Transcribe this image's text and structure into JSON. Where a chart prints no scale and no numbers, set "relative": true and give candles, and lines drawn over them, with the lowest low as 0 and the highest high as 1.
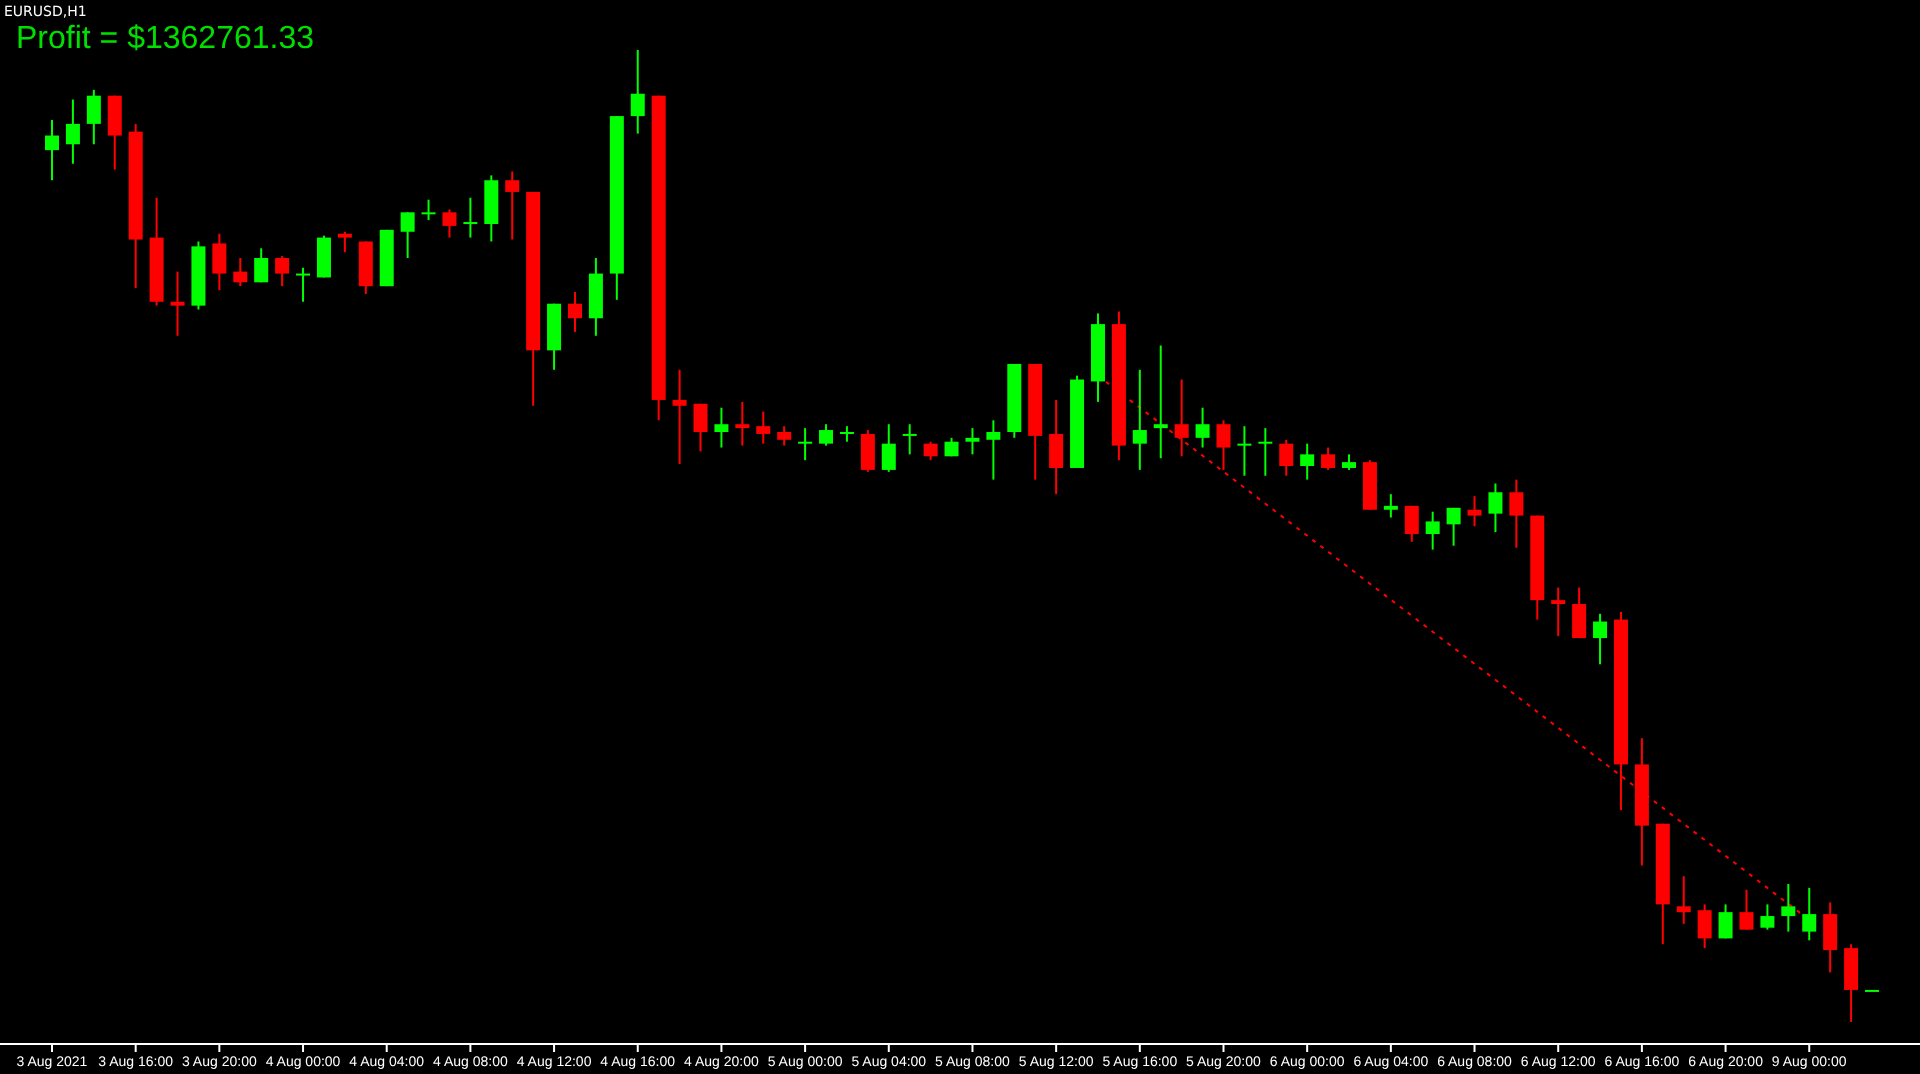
{
  "chart_data": {
    "type": "candlestick",
    "title": "EURUSD,H1",
    "annotations": [
      "Profit = $1362761.33"
    ],
    "relative": true,
    "tick_labels": "x",
    "categories": [
      "3 Aug 2021",
      null,
      null,
      null,
      "3 Aug 16:00",
      null,
      null,
      null,
      "3 Aug 20:00",
      null,
      null,
      null,
      "4 Aug 00:00",
      null,
      null,
      null,
      "4 Aug 04:00",
      null,
      null,
      null,
      "4 Aug 08:00",
      null,
      null,
      null,
      "4 Aug 12:00",
      null,
      null,
      null,
      "4 Aug 16:00",
      null,
      null,
      null,
      "4 Aug 20:00",
      null,
      null,
      null,
      "5 Aug 00:00",
      null,
      null,
      null,
      "5 Aug 04:00",
      null,
      null,
      null,
      "5 Aug 08:00",
      null,
      null,
      null,
      "5 Aug 12:00",
      null,
      null,
      null,
      "5 Aug 16:00",
      null,
      null,
      null,
      "5 Aug 20:00",
      null,
      null,
      null,
      "6 Aug 00:00",
      null,
      null,
      null,
      "6 Aug 04:00",
      null,
      null,
      null,
      "6 Aug 08:00",
      null,
      null,
      null,
      "6 Aug 12:00",
      null,
      null,
      null,
      "6 Aug 16:00",
      null,
      null,
      null,
      "6 Aug 20:00",
      null,
      null,
      null,
      "9 Aug 00:00",
      null,
      null,
      null
    ],
    "ohlc": [
      [
        0.897,
        0.928,
        0.866,
        0.912
      ],
      [
        0.903,
        0.949,
        0.883,
        0.924
      ],
      [
        0.924,
        0.959,
        0.903,
        0.953
      ],
      [
        0.953,
        0.953,
        0.877,
        0.912
      ],
      [
        0.916,
        0.924,
        0.755,
        0.805
      ],
      [
        0.807,
        0.848,
        0.737,
        0.741
      ],
      [
        0.741,
        0.772,
        0.706,
        0.737
      ],
      [
        0.737,
        0.803,
        0.733,
        0.798
      ],
      [
        0.801,
        0.811,
        0.753,
        0.77
      ],
      [
        0.772,
        0.786,
        0.757,
        0.761
      ],
      [
        0.761,
        0.796,
        0.761,
        0.786
      ],
      [
        0.786,
        0.788,
        0.757,
        0.77
      ],
      [
        0.768,
        0.776,
        0.741,
        0.77
      ],
      [
        0.766,
        0.809,
        0.766,
        0.807
      ],
      [
        0.811,
        0.813,
        0.792,
        0.807
      ],
      [
        0.803,
        0.803,
        0.749,
        0.757
      ],
      [
        0.757,
        0.815,
        0.757,
        0.815
      ],
      [
        0.813,
        0.833,
        0.786,
        0.833
      ],
      [
        0.831,
        0.846,
        0.825,
        0.833
      ],
      [
        0.833,
        0.836,
        0.807,
        0.819
      ],
      [
        0.821,
        0.848,
        0.807,
        0.823
      ],
      [
        0.821,
        0.871,
        0.803,
        0.866
      ],
      [
        0.866,
        0.875,
        0.805,
        0.854
      ],
      [
        0.854,
        0.854,
        0.634,
        0.691
      ],
      [
        0.691,
        0.739,
        0.671,
        0.739
      ],
      [
        0.739,
        0.751,
        0.71,
        0.724
      ],
      [
        0.724,
        0.786,
        0.706,
        0.77
      ],
      [
        0.77,
        0.932,
        0.743,
        0.932
      ],
      [
        0.932,
        1,
        0.914,
        0.955
      ],
      [
        0.953,
        0.953,
        0.619,
        0.64
      ],
      [
        0.64,
        0.671,
        0.574,
        0.634
      ],
      [
        0.636,
        0.636,
        0.587,
        0.607
      ],
      [
        0.607,
        0.632,
        0.591,
        0.615
      ],
      [
        0.615,
        0.638,
        0.593,
        0.611
      ],
      [
        0.613,
        0.628,
        0.595,
        0.605
      ],
      [
        0.607,
        0.613,
        0.593,
        0.599
      ],
      [
        0.595,
        0.611,
        0.578,
        0.597
      ],
      [
        0.595,
        0.615,
        0.593,
        0.609
      ],
      [
        0.605,
        0.613,
        0.597,
        0.607
      ],
      [
        0.605,
        0.609,
        0.566,
        0.568
      ],
      [
        0.568,
        0.615,
        0.566,
        0.595
      ],
      [
        0.603,
        0.615,
        0.584,
        0.605
      ],
      [
        0.595,
        0.597,
        0.578,
        0.582
      ],
      [
        0.582,
        0.601,
        0.582,
        0.597
      ],
      [
        0.597,
        0.611,
        0.584,
        0.601
      ],
      [
        0.599,
        0.619,
        0.558,
        0.607
      ],
      [
        0.607,
        0.677,
        0.601,
        0.677
      ],
      [
        0.677,
        0.677,
        0.558,
        0.603
      ],
      [
        0.605,
        0.64,
        0.543,
        0.57
      ],
      [
        0.57,
        0.665,
        0.57,
        0.661
      ],
      [
        0.659,
        0.729,
        0.638,
        0.718
      ],
      [
        0.718,
        0.731,
        0.578,
        0.593
      ],
      [
        0.595,
        0.671,
        0.568,
        0.609
      ],
      [
        0.611,
        0.696,
        0.58,
        0.615
      ],
      [
        0.615,
        0.661,
        0.582,
        0.601
      ],
      [
        0.601,
        0.632,
        0.591,
        0.615
      ],
      [
        0.615,
        0.619,
        0.568,
        0.591
      ],
      [
        0.593,
        0.613,
        0.562,
        0.595
      ],
      [
        0.595,
        0.611,
        0.562,
        0.597
      ],
      [
        0.595,
        0.599,
        0.562,
        0.572
      ],
      [
        0.572,
        0.595,
        0.558,
        0.584
      ],
      [
        0.584,
        0.591,
        0.568,
        0.57
      ],
      [
        0.57,
        0.584,
        0.568,
        0.576
      ],
      [
        0.576,
        0.578,
        0.527,
        0.527
      ],
      [
        0.527,
        0.543,
        0.519,
        0.531
      ],
      [
        0.531,
        0.531,
        0.494,
        0.502
      ],
      [
        0.502,
        0.525,
        0.486,
        0.515
      ],
      [
        0.512,
        0.529,
        0.49,
        0.529
      ],
      [
        0.527,
        0.541,
        0.51,
        0.521
      ],
      [
        0.523,
        0.554,
        0.504,
        0.545
      ],
      [
        0.545,
        0.558,
        0.488,
        0.521
      ],
      [
        0.521,
        0.521,
        0.414,
        0.434
      ],
      [
        0.434,
        0.447,
        0.397,
        0.43
      ],
      [
        0.43,
        0.447,
        0.395,
        0.395
      ],
      [
        0.395,
        0.42,
        0.368,
        0.412
      ],
      [
        0.414,
        0.422,
        0.218,
        0.265
      ],
      [
        0.265,
        0.292,
        0.161,
        0.202
      ],
      [
        0.204,
        0.204,
        0.08,
        0.121
      ],
      [
        0.119,
        0.15,
        0.101,
        0.113
      ],
      [
        0.115,
        0.121,
        0.076,
        0.086
      ],
      [
        0.086,
        0.121,
        0.086,
        0.113
      ],
      [
        0.113,
        0.136,
        0.095,
        0.095
      ],
      [
        0.097,
        0.121,
        0.095,
        0.109
      ],
      [
        0.109,
        0.142,
        0.093,
        0.119
      ],
      [
        0.093,
        0.138,
        0.084,
        0.111
      ],
      [
        0.111,
        0.123,
        0.051,
        0.074
      ],
      [
        0.076,
        0.08,
        0,
        0.033
      ],
      [
        0.033,
        0.033,
        0.033,
        0.033
      ]
    ],
    "colors": [
      "#00ff00",
      "#00ff00",
      "#00ff00",
      "#ff0000",
      "#ff0000",
      "#ff0000",
      "#ff0000",
      "#00ff00",
      "#ff0000",
      "#ff0000",
      "#00ff00",
      "#ff0000",
      "#00ff00",
      "#00ff00",
      "#ff0000",
      "#ff0000",
      "#00ff00",
      "#00ff00",
      "#00ff00",
      "#ff0000",
      "#00ff00",
      "#00ff00",
      "#ff0000",
      "#ff0000",
      "#00ff00",
      "#ff0000",
      "#00ff00",
      "#00ff00",
      "#00ff00",
      "#ff0000",
      "#ff0000",
      "#ff0000",
      "#00ff00",
      "#ff0000",
      "#ff0000",
      "#ff0000",
      "#00ff00",
      "#00ff00",
      "#00ff00",
      "#ff0000",
      "#00ff00",
      "#00ff00",
      "#ff0000",
      "#00ff00",
      "#00ff00",
      "#00ff00",
      "#00ff00",
      "#ff0000",
      "#ff0000",
      "#00ff00",
      "#00ff00",
      "#ff0000",
      "#00ff00",
      "#00ff00",
      "#ff0000",
      "#00ff00",
      "#ff0000",
      "#00ff00",
      "#00ff00",
      "#ff0000",
      "#00ff00",
      "#ff0000",
      "#00ff00",
      "#ff0000",
      "#00ff00",
      "#ff0000",
      "#00ff00",
      "#00ff00",
      "#ff0000",
      "#00ff00",
      "#ff0000",
      "#ff0000",
      "#ff0000",
      "#ff0000",
      "#00ff00",
      "#ff0000",
      "#ff0000",
      "#ff0000",
      "#ff0000",
      "#ff0000",
      "#00ff00",
      "#ff0000",
      "#00ff00",
      "#00ff00",
      "#00ff00",
      "#ff0000",
      "#ff0000",
      "#00ff00"
    ],
    "series": [
      {
        "type": "line",
        "color": "#ff0000",
        "line_style": "dotted",
        "values": [
          null,
          null,
          null,
          null,
          null,
          null,
          null,
          null,
          null,
          null,
          null,
          null,
          null,
          null,
          null,
          null,
          null,
          null,
          null,
          null,
          null,
          null,
          null,
          null,
          null,
          null,
          null,
          null,
          null,
          null,
          null,
          null,
          null,
          null,
          null,
          null,
          null,
          null,
          null,
          null,
          null,
          null,
          null,
          null,
          null,
          null,
          null,
          null,
          null,
          null,
          0.665,
          null,
          null,
          null,
          null,
          null,
          null,
          null,
          null,
          null,
          null,
          null,
          null,
          null,
          null,
          null,
          null,
          null,
          null,
          null,
          null,
          null,
          null,
          null,
          null,
          null,
          null,
          null,
          null,
          null,
          null,
          null,
          null,
          null,
          0.105,
          null,
          null,
          null
        ]
      }
    ]
  }
}
